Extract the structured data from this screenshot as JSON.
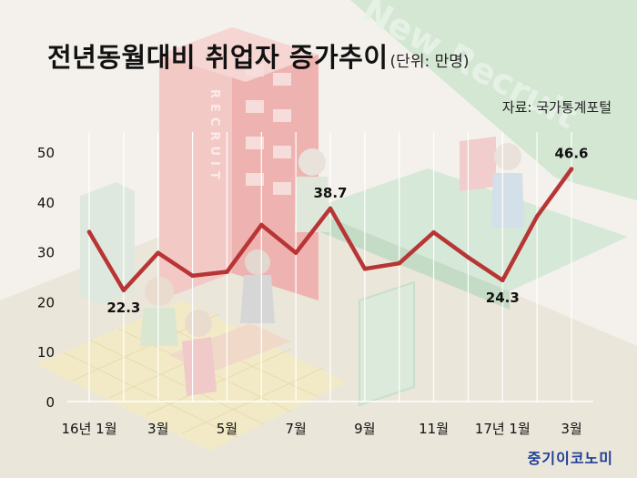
{
  "header": {
    "title": "전년동월대비 취업자 증가추이",
    "unit": "(단위: 만명)"
  },
  "source": "자료: 국가통계포털",
  "brand": "중기이코노미",
  "background": {
    "sign_text": "New Recruit",
    "building_text": "RECRUIT"
  },
  "colors": {
    "line": "#b83535",
    "grid": "#ffffff",
    "text": "#111111",
    "brand": "#1f3f94"
  },
  "chart_data": {
    "type": "line",
    "title": "전년동월대비 취업자 증가추이",
    "unit": "(단위: 만명)",
    "ylim": [
      0,
      50
    ],
    "yticks": [
      0,
      10,
      20,
      30,
      40,
      50
    ],
    "x": [
      "16년 1월",
      "2월",
      "3월",
      "4월",
      "5월",
      "6월",
      "7월",
      "8월",
      "9월",
      "10월",
      "11월",
      "12월",
      "17년 1월",
      "2월",
      "3월"
    ],
    "xtick_labels": [
      "16년 1월",
      "",
      "3월",
      "",
      "5월",
      "",
      "7월",
      "",
      "9월",
      "",
      "11월",
      "",
      "17년 1월",
      "",
      "3월"
    ],
    "values": [
      34.0,
      22.3,
      29.8,
      25.2,
      26.0,
      35.4,
      29.8,
      38.7,
      26.6,
      27.7,
      33.9,
      28.9,
      24.3,
      37.1,
      46.6
    ],
    "data_labels": [
      {
        "index": 1,
        "text": "22.3",
        "pos": "below"
      },
      {
        "index": 7,
        "text": "38.7",
        "pos": "above"
      },
      {
        "index": 12,
        "text": "24.3",
        "pos": "below"
      },
      {
        "index": 14,
        "text": "46.6",
        "pos": "above"
      }
    ],
    "grid": "vertical"
  }
}
